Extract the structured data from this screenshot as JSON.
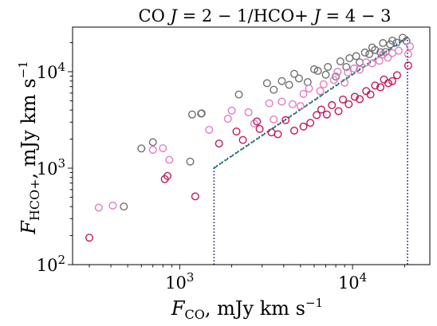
{
  "chart_data": {
    "type": "scatter",
    "title": "CO J = 2 − 1/HCO+ J = 4 − 3",
    "title_parts": {
      "co": "CO ",
      "j1": "J",
      "eq1": " = 2 − 1/HCO+ ",
      "j2": "J",
      "eq2": " = 4 − 3"
    },
    "xlabel": "F_CO, mJy km s^-1",
    "xlabel_parts": {
      "F": "F",
      "sub": "CO",
      "rest": ", mJy km s",
      "sup": "−1"
    },
    "ylabel": "F_HCO+, mJy km s^-1",
    "ylabel_parts": {
      "F": "F",
      "sub": "HCO+",
      "rest": ", mJy km s",
      "sup": "−1"
    },
    "xscale": "log",
    "yscale": "log",
    "xlim": [
      240,
      28000
    ],
    "ylim": [
      100,
      29000
    ],
    "xticks": [
      {
        "value": 1000,
        "base": "10",
        "exp": "3"
      },
      {
        "value": 10000,
        "base": "10",
        "exp": "4"
      }
    ],
    "yticks": [
      {
        "value": 100,
        "base": "10",
        "exp": "2"
      },
      {
        "value": 1000,
        "base": "10",
        "exp": "3"
      },
      {
        "value": 10000,
        "base": "10",
        "exp": "4"
      }
    ],
    "grid": false,
    "legend": "none",
    "lines": [
      {
        "style": "dotted",
        "color": "#2b2a8c",
        "x": [
          1580,
          1580
        ],
        "y": [
          100,
          1010
        ]
      },
      {
        "style": "dotted",
        "color": "#2b2a8c",
        "x": [
          1580,
          20800
        ],
        "y": [
          1010,
          23000
        ]
      },
      {
        "style": "dotted",
        "color": "#2b2a8c",
        "x": [
          20800,
          20800
        ],
        "y": [
          23000,
          100
        ]
      },
      {
        "style": "dashed",
        "color": "#1f7a6a",
        "x": [
          1580,
          20800
        ],
        "y": [
          1000,
          22600
        ]
      }
    ],
    "series": [
      {
        "color": "#707070",
        "x": [
          475,
          600,
          700,
          1150,
          1180,
          1330,
          1340,
          2200,
          3200,
          3500,
          3900,
          4300,
          4600,
          4900,
          5500,
          6000,
          6300,
          7000,
          7200,
          8000,
          8500,
          9200,
          9600,
          10500,
          11000,
          11800,
          12500,
          13000,
          13500,
          14500,
          15000,
          15500,
          16500,
          17000,
          18000,
          19500,
          20500
        ],
        "y": [
          400,
          1600,
          1860,
          1170,
          3600,
          3680,
          3700,
          5800,
          7600,
          6500,
          8000,
          7300,
          9500,
          8500,
          7800,
          10600,
          10200,
          9300,
          11200,
          8900,
          12800,
          11200,
          13800,
          14500,
          12500,
          15800,
          15200,
          17800,
          16800,
          15900,
          19800,
          16000,
          19200,
          21000,
          20000,
          22500,
          20800
        ]
      },
      {
        "color": "#e07cc4",
        "x": [
          340,
          410,
          700,
          800,
          870,
          1480,
          1900,
          2000,
          2500,
          2700,
          3300,
          3500,
          3900,
          4500,
          5000,
          5200,
          5600,
          6500,
          6800,
          7800,
          8200,
          9000,
          9400,
          10200,
          11000,
          12000,
          13000,
          14300,
          15000,
          16000,
          17000,
          18500,
          21000,
          21500
        ],
        "y": [
          390,
          410,
          1550,
          1610,
          1220,
          2500,
          3250,
          3950,
          3800,
          2900,
          4700,
          3200,
          4900,
          4600,
          4400,
          5900,
          6700,
          6300,
          7400,
          8200,
          10000,
          7700,
          9800,
          10800,
          10500,
          12500,
          12200,
          13000,
          15100,
          14000,
          15600,
          16500,
          15200,
          18300
        ]
      },
      {
        "color": "#c2185b",
        "x": [
          300,
          820,
          850,
          1230,
          1690,
          2130,
          2320,
          2800,
          2900,
          3400,
          3700,
          4100,
          4600,
          5200,
          5700,
          6200,
          6600,
          7100,
          7600,
          8300,
          8800,
          9500,
          10300,
          11000,
          12000,
          12700,
          13500,
          14500,
          15200,
          16100,
          17000,
          18100,
          21000
        ],
        "y": [
          190,
          770,
          830,
          510,
          1800,
          2400,
          1960,
          3050,
          2550,
          2350,
          2250,
          3150,
          2450,
          2700,
          2950,
          3550,
          4050,
          3600,
          4500,
          3900,
          5150,
          4600,
          5500,
          5200,
          6300,
          5800,
          7200,
          6900,
          8300,
          7600,
          8000,
          9200,
          11600
        ]
      }
    ]
  }
}
